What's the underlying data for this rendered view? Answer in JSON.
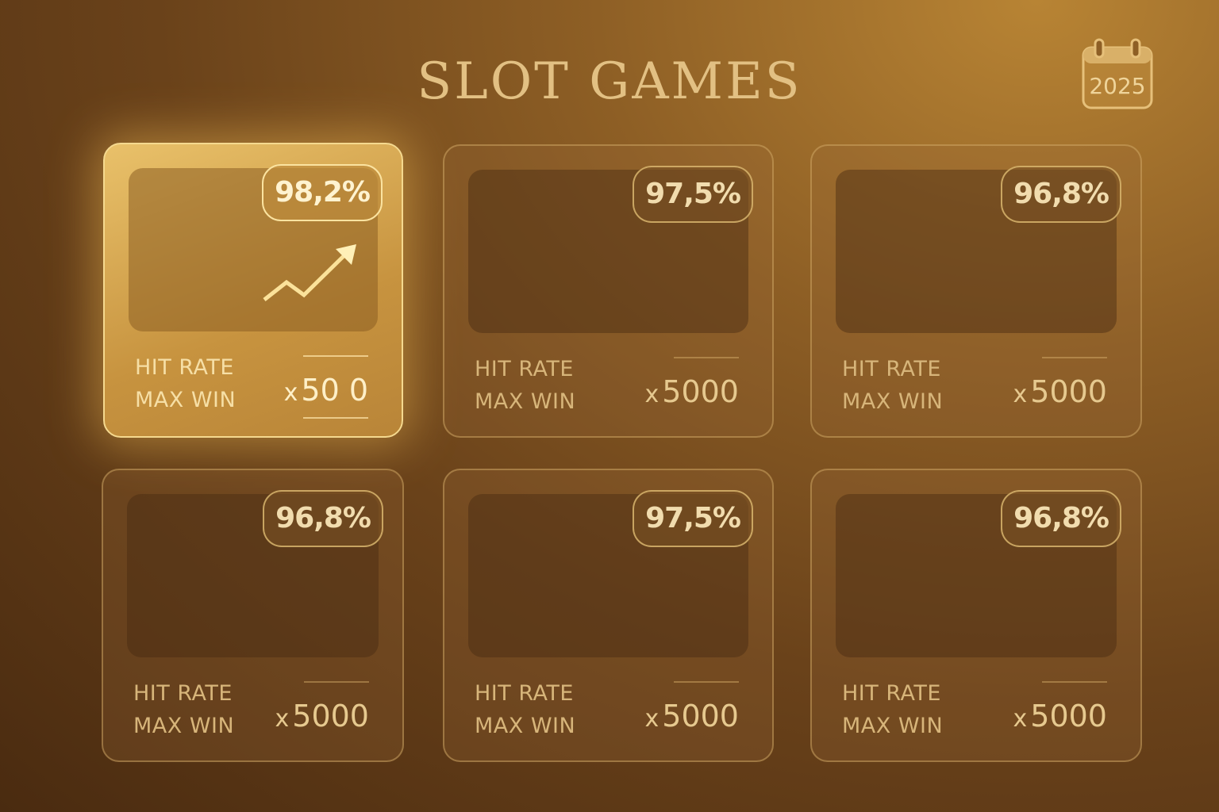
{
  "header": {
    "title": "SLOT GAMES",
    "year": "2025",
    "year_icon": "calendar-icon"
  },
  "labels": {
    "hit_rate": "HIT RATE",
    "max_win": "MAX WIN",
    "multiplier_prefix": "x"
  },
  "colors": {
    "accent": "#e2c083",
    "highlight": "#e9c16a"
  },
  "cards": [
    {
      "rate": "98,2%",
      "max_win": "50 0",
      "highlighted": true,
      "icon": "trend-up-arrow-icon"
    },
    {
      "rate": "97,5%",
      "max_win": "5000",
      "highlighted": false
    },
    {
      "rate": "96,8%",
      "max_win": "5000",
      "highlighted": false
    },
    {
      "rate": "96,8%",
      "max_win": "5000",
      "highlighted": false
    },
    {
      "rate": "97,5%",
      "max_win": "5000",
      "highlighted": false
    },
    {
      "rate": "96,8%",
      "max_win": "5000",
      "highlighted": false
    }
  ]
}
